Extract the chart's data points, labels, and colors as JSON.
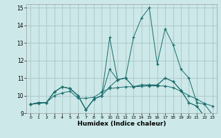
{
  "title": "",
  "xlabel": "Humidex (Indice chaleur)",
  "bg_color": "#cce8e8",
  "grid_color": "#b0cccc",
  "line_color": "#1a6b6b",
  "marker": "+",
  "xlim": [
    -0.5,
    23.5
  ],
  "ylim": [
    9,
    15.2
  ],
  "xticks": [
    0,
    1,
    2,
    3,
    4,
    5,
    6,
    7,
    8,
    9,
    10,
    11,
    12,
    13,
    14,
    15,
    16,
    17,
    18,
    19,
    20,
    21,
    22,
    23
  ],
  "yticks": [
    9,
    10,
    11,
    12,
    13,
    14,
    15
  ],
  "series": [
    [
      9.5,
      9.6,
      9.6,
      10.2,
      10.5,
      10.4,
      10.0,
      9.2,
      9.8,
      10.0,
      11.5,
      10.9,
      11.0,
      13.3,
      14.4,
      15.0,
      11.8,
      13.8,
      12.9,
      11.5,
      11.0,
      9.6,
      9.5,
      8.9
    ],
    [
      9.5,
      9.6,
      9.6,
      10.2,
      10.5,
      10.4,
      10.0,
      9.2,
      9.8,
      10.0,
      13.3,
      10.9,
      11.0,
      10.5,
      10.6,
      10.6,
      10.6,
      11.0,
      10.8,
      10.3,
      9.6,
      9.4,
      8.8,
      8.9
    ],
    [
      9.5,
      9.55,
      9.6,
      10.0,
      10.15,
      10.25,
      9.85,
      9.85,
      9.9,
      10.2,
      10.4,
      10.45,
      10.5,
      10.5,
      10.52,
      10.55,
      10.55,
      10.55,
      10.45,
      10.25,
      10.0,
      9.8,
      9.55,
      9.4
    ],
    [
      9.5,
      9.6,
      9.6,
      10.2,
      10.5,
      10.4,
      10.0,
      9.2,
      9.8,
      10.0,
      10.5,
      10.9,
      11.0,
      10.5,
      10.6,
      10.6,
      10.6,
      11.0,
      10.8,
      10.3,
      9.6,
      9.4,
      8.8,
      8.9
    ]
  ]
}
